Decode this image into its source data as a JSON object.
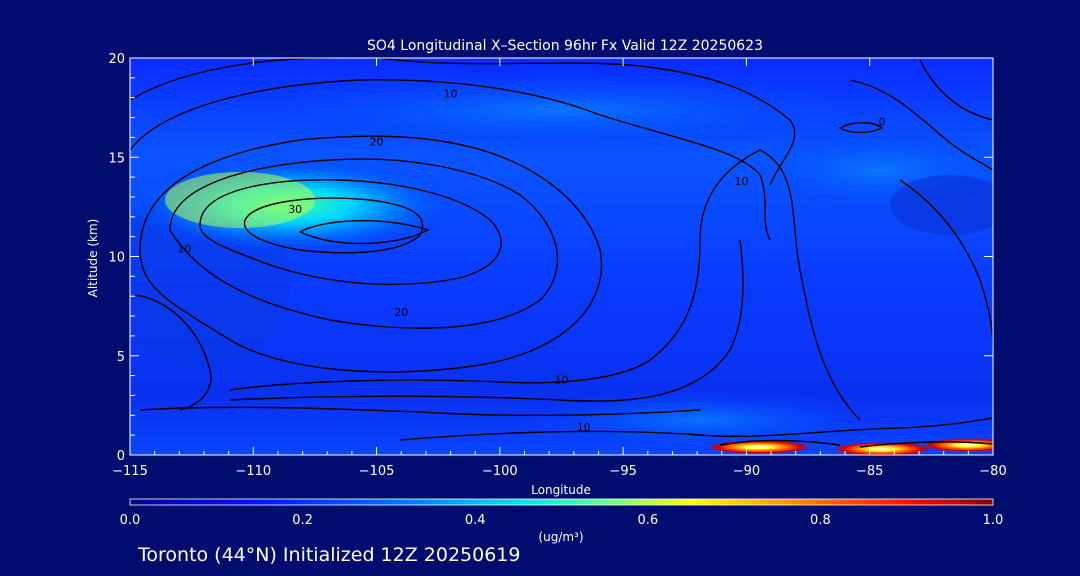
{
  "chart_data": {
    "type": "heatmap",
    "title": "SO4 Longitudinal X–Section 96hr  Fx Valid 12Z 20250623",
    "subtitle": "Toronto (44°N) Initialized 12Z 20250619",
    "xlabel": "Longitude",
    "ylabel": "Altitude (km)",
    "xlim": [
      -115,
      -80
    ],
    "ylim": [
      0,
      20
    ],
    "x_ticks": [
      -115,
      -110,
      -105,
      -100,
      -95,
      -90,
      -85,
      -80
    ],
    "x_tick_labels": [
      "−115",
      "−110",
      "−105",
      "−100",
      "−95",
      "−90",
      "−85",
      "−80"
    ],
    "y_ticks": [
      0,
      5,
      10,
      15,
      20
    ],
    "y_tick_labels": [
      "0",
      "5",
      "10",
      "15",
      "20"
    ],
    "colorbar": {
      "label": "(ug/m³)",
      "range": [
        0.0,
        1.0
      ],
      "ticks": [
        0.0,
        0.2,
        0.4,
        0.6,
        0.8,
        1.0
      ],
      "tick_labels": [
        "0.0",
        "0.2",
        "0.4",
        "0.6",
        "0.8",
        "1.0"
      ],
      "colors": [
        "#00008f",
        "#0014ff",
        "#0080ff",
        "#00e0ff",
        "#60ff90",
        "#ffff00",
        "#ff8000",
        "#ff1000",
        "#800000"
      ]
    },
    "contour_labels": [
      {
        "text": "10",
        "lon": -112.8,
        "alt": 10.2
      },
      {
        "text": "20",
        "lon": -104.0,
        "alt": 7.0
      },
      {
        "text": "10",
        "lon": -97.5,
        "alt": 3.6
      },
      {
        "text": "30",
        "lon": -108.3,
        "alt": 12.2
      },
      {
        "text": "20",
        "lon": -105.0,
        "alt": 15.6
      },
      {
        "text": "10",
        "lon": -102.0,
        "alt": 18.0
      },
      {
        "text": "10",
        "lon": -90.2,
        "alt": 13.6
      },
      {
        "text": "0",
        "lon": -84.5,
        "alt": 16.6
      },
      {
        "text": "10",
        "lon": -96.6,
        "alt": 1.2
      }
    ],
    "hotspots": [
      {
        "lon": -89.5,
        "alt": 0.4,
        "value": 0.95
      },
      {
        "lon": -84.5,
        "alt": 0.3,
        "value": 0.9
      },
      {
        "lon": -81.0,
        "alt": 0.5,
        "value": 0.85
      },
      {
        "lon": -109.5,
        "alt": 12.8,
        "value": 0.55
      }
    ]
  }
}
